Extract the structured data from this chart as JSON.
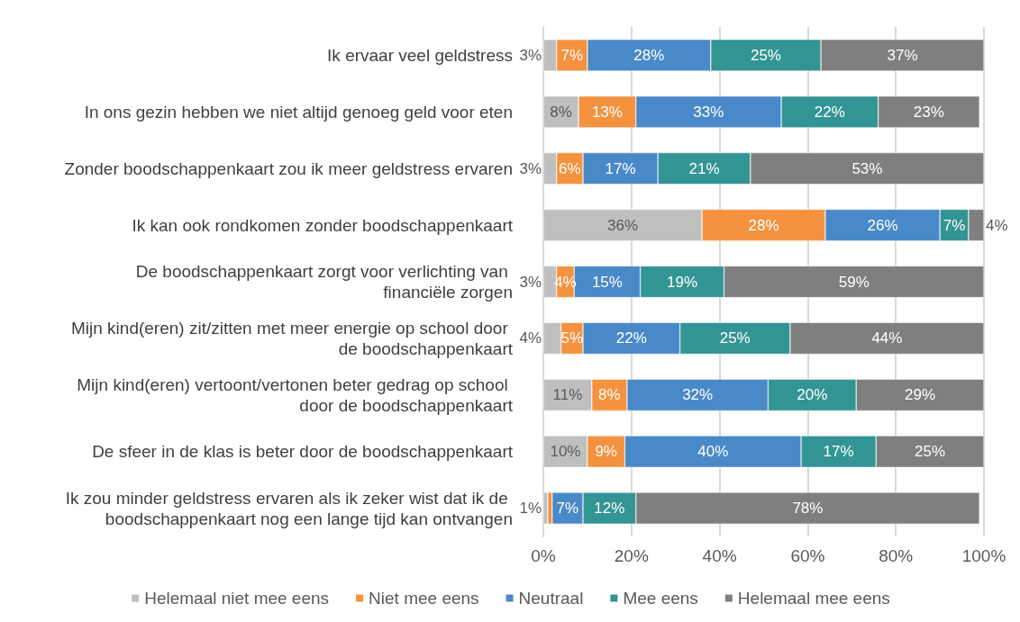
{
  "chart_data": {
    "type": "bar",
    "orientation": "horizontal",
    "stacked": true,
    "categories": [
      "Ik ervaar veel geldstress",
      "In ons gezin hebben we niet altijd genoeg geld voor eten",
      "Zonder boodschappenkaart zou ik meer geldstress ervaren",
      "Ik kan ook rondkomen zonder boodschappenkaart",
      "De boodschappenkaart zorgt voor verlichting van financiële zorgen",
      "Mijn kind(eren) zit/zitten met meer energie op school door de boodschappenkaart",
      "Mijn kind(eren) vertoont/vertonen beter gedrag op school door de boodschappenkaart",
      "De sfeer in de klas is beter door de boodschappenkaart",
      "Ik zou minder geldstress ervaren als ik zeker wist dat ik de boodschappenkaart nog een lange tijd kan ontvangen"
    ],
    "series": [
      {
        "name": "Helemaal niet mee eens",
        "color": "#bfbfbf",
        "values": [
          3,
          8,
          3,
          36,
          3,
          4,
          11,
          10,
          1
        ],
        "value_labels": [
          "3%",
          "8%",
          "3%",
          "36%",
          "3%",
          "4%",
          "11%",
          "10%",
          "1%"
        ]
      },
      {
        "name": "Niet mee eens",
        "color": "#f4923f",
        "values": [
          7,
          13,
          6,
          28,
          4,
          5,
          8,
          8.5,
          1
        ],
        "value_labels": [
          "7%",
          "13%",
          "6%",
          "28%",
          "4%",
          "5%",
          "8%",
          "9%",
          null
        ]
      },
      {
        "name": "Neutraal",
        "color": "#4a89c8",
        "values": [
          28,
          33,
          17,
          26,
          15,
          22,
          32,
          40,
          7
        ],
        "value_labels": [
          "28%",
          "33%",
          "17%",
          "26%",
          "15%",
          "22%",
          "32%",
          "40%",
          "7%"
        ]
      },
      {
        "name": "Mee eens",
        "color": "#339494",
        "values": [
          25,
          22,
          21,
          6.5,
          19,
          25,
          20,
          17,
          12
        ],
        "value_labels": [
          "25%",
          "22%",
          "21%",
          "7%",
          "19%",
          "25%",
          "20%",
          "17%",
          "12%"
        ]
      },
      {
        "name": "Helemaal mee eens",
        "color": "#7f7f7f",
        "values": [
          37,
          23,
          53,
          3.5,
          59,
          44,
          29,
          24.5,
          78
        ],
        "value_labels": [
          "37%",
          "23%",
          "53%",
          "4%",
          "59%",
          "44%",
          "29%",
          "25%",
          "78%"
        ]
      }
    ],
    "xlim": [
      0,
      100
    ],
    "xticks": [
      {
        "value": 0,
        "label": "0%"
      },
      {
        "value": 20,
        "label": "20%"
      },
      {
        "value": 40,
        "label": "40%"
      },
      {
        "value": 60,
        "label": "60%"
      },
      {
        "value": 80,
        "label": "80%"
      },
      {
        "value": 100,
        "label": "100%"
      }
    ],
    "grid": "x",
    "legend": "bottom"
  }
}
